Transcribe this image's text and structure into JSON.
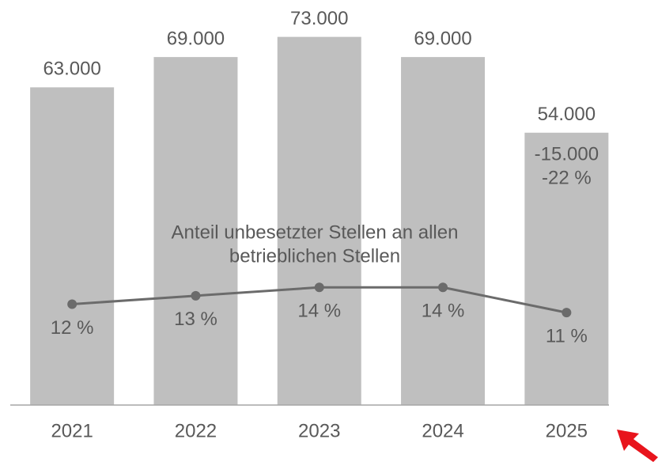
{
  "chart_data": {
    "type": "bar",
    "categories": [
      "2021",
      "2022",
      "2023",
      "2024",
      "2025"
    ],
    "series": [
      {
        "type": "bar",
        "color": "#bfbfbf",
        "values": [
          63000,
          69000,
          73000,
          69000,
          54000
        ],
        "value_labels": [
          "63.000",
          "69.000",
          "73.000",
          "69.000",
          "54.000"
        ]
      },
      {
        "type": "line",
        "axis": "y2",
        "color": "#6b6b6b",
        "values": [
          12,
          13,
          14,
          14,
          11
        ],
        "value_labels": [
          "12 %",
          "13 %",
          "14 %",
          "14 %",
          "11 %"
        ]
      }
    ],
    "annotations": [
      "Anteil unbesetzter Stellen an allen",
      "betrieblichen Stellen",
      "-15.000",
      "-22 %"
    ],
    "ylim": [
      0,
      80000
    ],
    "y2lim": [
      0,
      48
    ]
  }
}
